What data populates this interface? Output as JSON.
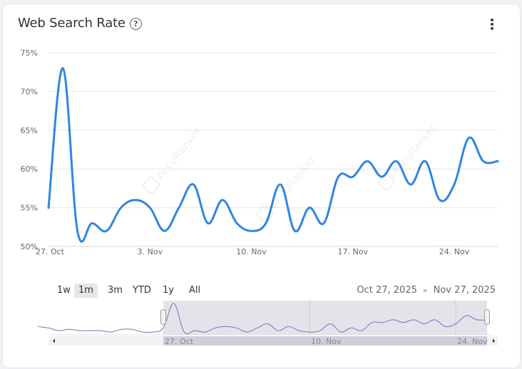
{
  "header": {
    "title": "Web Search Rate",
    "help_icon": "question-circle-icon",
    "menu_icon": "kebab-menu-icon"
  },
  "range_buttons": [
    {
      "label": "1w",
      "selected": false
    },
    {
      "label": "1m",
      "selected": true
    },
    {
      "label": "3m",
      "selected": false
    },
    {
      "label": "YTD",
      "selected": false
    },
    {
      "label": "1y",
      "selected": false
    },
    {
      "label": "All",
      "selected": false
    }
  ],
  "date_range": {
    "from": "Oct 27, 2025",
    "separator": "»",
    "to": "Nov 27, 2025"
  },
  "watermark": "AccuRanker",
  "colors": {
    "line": "#2f86dd",
    "navigator_line": "#7b6fb8",
    "navigator_mask": "#e3e4ea"
  },
  "chart_data": {
    "type": "line",
    "title": "Web Search Rate",
    "x_start": "2025-10-27",
    "x_end": "2025-11-27",
    "x_ticks": [
      "27. Oct",
      "3. Nov",
      "10. Nov",
      "17. Nov",
      "24. Nov"
    ],
    "y_ticks": [
      "50%",
      "55%",
      "60%",
      "65%",
      "70%",
      "75%"
    ],
    "ylim": [
      50,
      75
    ],
    "grid": true,
    "series": [
      {
        "values": [
          55,
          73,
          52,
          53,
          52,
          55,
          56,
          55,
          52,
          55,
          58,
          53,
          56,
          53,
          52,
          53,
          58,
          52,
          55,
          53,
          59,
          59,
          61,
          59,
          61,
          58,
          61,
          56,
          58,
          64,
          61,
          61
        ]
      }
    ],
    "navigator_ticks": [
      "27. Oct",
      "10. Nov",
      "24. Nov"
    ],
    "navigator_series": [
      56,
      55,
      53,
      54,
      53,
      53,
      53,
      52,
      54,
      54,
      52,
      52
    ]
  }
}
